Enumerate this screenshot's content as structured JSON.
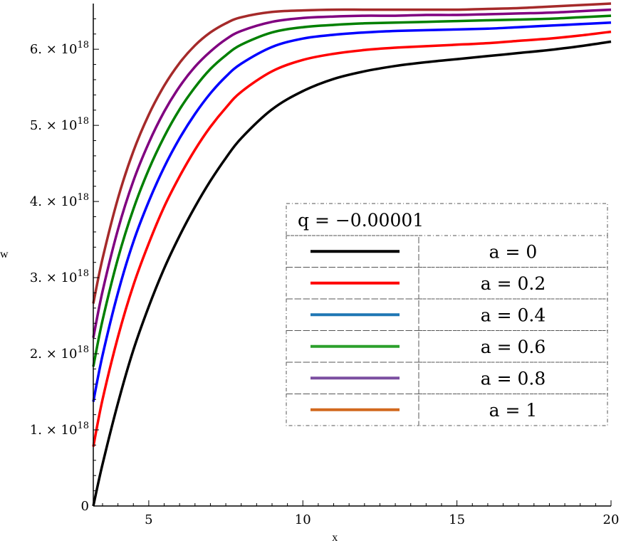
{
  "chart_data": {
    "type": "line",
    "xlabel": "x",
    "ylabel": "w",
    "xlim": [
      3.2,
      20
    ],
    "ylim": [
      0,
      6.6e+18
    ],
    "x_ticks": [
      5,
      10,
      15,
      20
    ],
    "y_ticks": [
      {
        "value": 0,
        "label": "0"
      },
      {
        "value": 1e+18,
        "mant": "1. × 10",
        "exp": "18"
      },
      {
        "value": 2e+18,
        "mant": "2. × 10",
        "exp": "18"
      },
      {
        "value": 3e+18,
        "mant": "3. × 10",
        "exp": "18"
      },
      {
        "value": 4e+18,
        "mant": "4. × 10",
        "exp": "18"
      },
      {
        "value": 5e+18,
        "mant": "5. × 10",
        "exp": "18"
      },
      {
        "value": 6e+18,
        "mant": "6. × 10",
        "exp": "18"
      }
    ],
    "grid": false,
    "legend_position": "center-right",
    "legend_title": "q = −0.00001",
    "x": [
      3.2,
      3.5,
      4,
      4.5,
      5,
      5.5,
      6,
      6.5,
      7,
      7.5,
      8,
      9,
      10,
      11,
      12,
      13,
      14,
      15,
      16,
      17,
      18,
      19,
      20
    ],
    "series": [
      {
        "name": "a = 0",
        "color": "#000000",
        "legend_color": "#000000",
        "values": [
          0.0,
          5.5e+17,
          1.35e+18,
          2.05e+18,
          2.62e+18,
          3.12e+18,
          3.55e+18,
          3.93e+18,
          4.27e+18,
          4.57e+18,
          4.83e+18,
          5.21e+18,
          5.45e+18,
          5.61e+18,
          5.71e+18,
          5.78e+18,
          5.83e+18,
          5.87e+18,
          5.91e+18,
          5.95e+18,
          5.99e+18,
          6.04e+18,
          6.1e+18
        ]
      },
      {
        "name": "a = 0.2",
        "color": "#ff0000",
        "legend_color": "#ff0000",
        "values": [
          7.8e+17,
          1.4e+18,
          2.22e+18,
          2.9e+18,
          3.45e+18,
          3.93e+18,
          4.33e+18,
          4.68e+18,
          4.98e+18,
          5.23e+18,
          5.44e+18,
          5.71e+18,
          5.86e+18,
          5.94e+18,
          5.99e+18,
          6.02e+18,
          6.04e+18,
          6.06e+18,
          6.08e+18,
          6.11e+18,
          6.14e+18,
          6.18e+18,
          6.23e+18
        ]
      },
      {
        "name": "a = 0.4",
        "color": "#0000ff",
        "legend_color": "#1f77b4",
        "values": [
          1.37e+18,
          1.98e+18,
          2.8e+18,
          3.47e+18,
          4e+18,
          4.45e+18,
          4.83e+18,
          5.15e+18,
          5.42e+18,
          5.64e+18,
          5.81e+18,
          6.03e+18,
          6.14e+18,
          6.19e+18,
          6.22e+18,
          6.24e+18,
          6.25e+18,
          6.26e+18,
          6.27e+18,
          6.29e+18,
          6.31e+18,
          6.33e+18,
          6.35e+18
        ]
      },
      {
        "name": "a = 0.6",
        "color": "#008000",
        "legend_color": "#2ca02c",
        "values": [
          1.83e+18,
          2.44e+18,
          3.25e+18,
          3.9e+18,
          4.42e+18,
          4.85e+18,
          5.21e+18,
          5.5e+18,
          5.74e+18,
          5.92e+18,
          6.06e+18,
          6.22e+18,
          6.29e+18,
          6.32e+18,
          6.34e+18,
          6.35e+18,
          6.36e+18,
          6.37e+18,
          6.38e+18,
          6.39e+18,
          6.4e+18,
          6.42e+18,
          6.44e+18
        ]
      },
      {
        "name": "a = 0.8",
        "color": "#800080",
        "legend_color": "#7b4ea0",
        "values": [
          2.21e+18,
          2.82e+18,
          3.63e+18,
          4.27e+18,
          4.77e+18,
          5.18e+18,
          5.51e+18,
          5.77e+18,
          5.97e+18,
          6.13e+18,
          6.24e+18,
          6.36e+18,
          6.41e+18,
          6.43e+18,
          6.44e+18,
          6.44e+18,
          6.45e+18,
          6.45e+18,
          6.46e+18,
          6.47e+18,
          6.48e+18,
          6.5e+18,
          6.52e+18
        ]
      },
      {
        "name": "a = 1",
        "color": "#a52a2a",
        "legend_color": "#d2691e",
        "values": [
          2.66e+18,
          3.25e+18,
          4.04e+18,
          4.66e+18,
          5.14e+18,
          5.52e+18,
          5.82e+18,
          6.05e+18,
          6.22e+18,
          6.34e+18,
          6.42e+18,
          6.49e+18,
          6.51e+18,
          6.52e+18,
          6.52e+18,
          6.52e+18,
          6.52e+18,
          6.52e+18,
          6.53e+18,
          6.54e+18,
          6.56e+18,
          6.58e+18,
          6.6e+18
        ]
      }
    ]
  }
}
